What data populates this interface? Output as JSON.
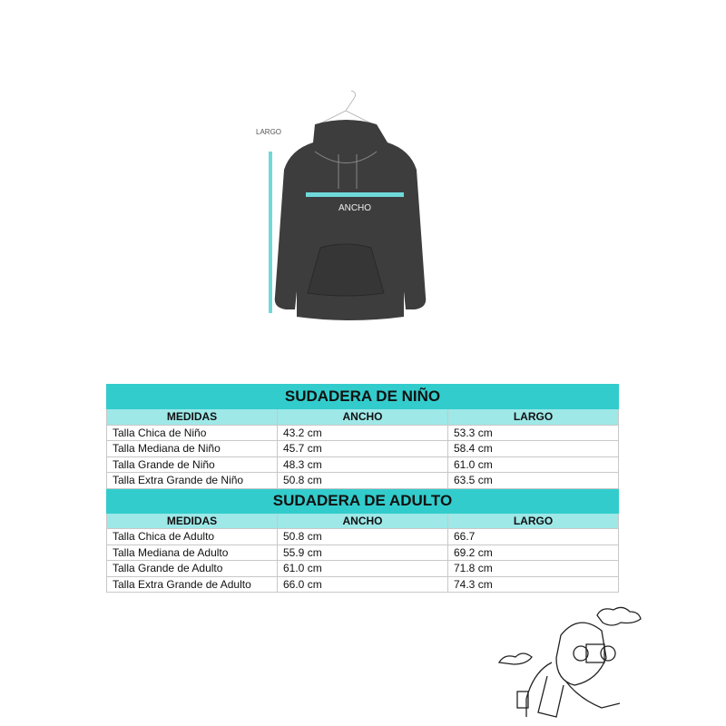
{
  "figure": {
    "largo_label": "LARGO",
    "ancho_label": "ANCHO",
    "accent": "#6fd9d9"
  },
  "tables": [
    {
      "title": "SUDADERA DE NIÑO",
      "headers": [
        "MEDIDAS",
        "ANCHO",
        "LARGO"
      ],
      "rows": [
        [
          "Talla Chica de Niño",
          "43.2 cm",
          "53.3 cm"
        ],
        [
          "Talla Mediana de Niño",
          "45.7 cm",
          "58.4 cm"
        ],
        [
          "Talla Grande de Niño",
          "48.3 cm",
          "61.0 cm"
        ],
        [
          "Talla Extra Grande de Niño",
          "50.8 cm",
          "63.5 cm"
        ]
      ]
    },
    {
      "title": "SUDADERA DE ADULTO",
      "headers": [
        "MEDIDAS",
        "ANCHO",
        "LARGO"
      ],
      "rows": [
        [
          "Talla Chica de Adulto",
          "50.8 cm",
          "66.7"
        ],
        [
          "Talla Mediana de Adulto",
          "55.9 cm",
          "69.2 cm"
        ],
        [
          "Talla Grande de Adulto",
          "61.0 cm",
          "71.8 cm"
        ],
        [
          "Talla Extra Grande de Adulto",
          "66.0 cm",
          "74.3 cm"
        ]
      ]
    }
  ],
  "colors": {
    "title_bg": "#33cccc",
    "header_bg": "#9ee8e8"
  }
}
